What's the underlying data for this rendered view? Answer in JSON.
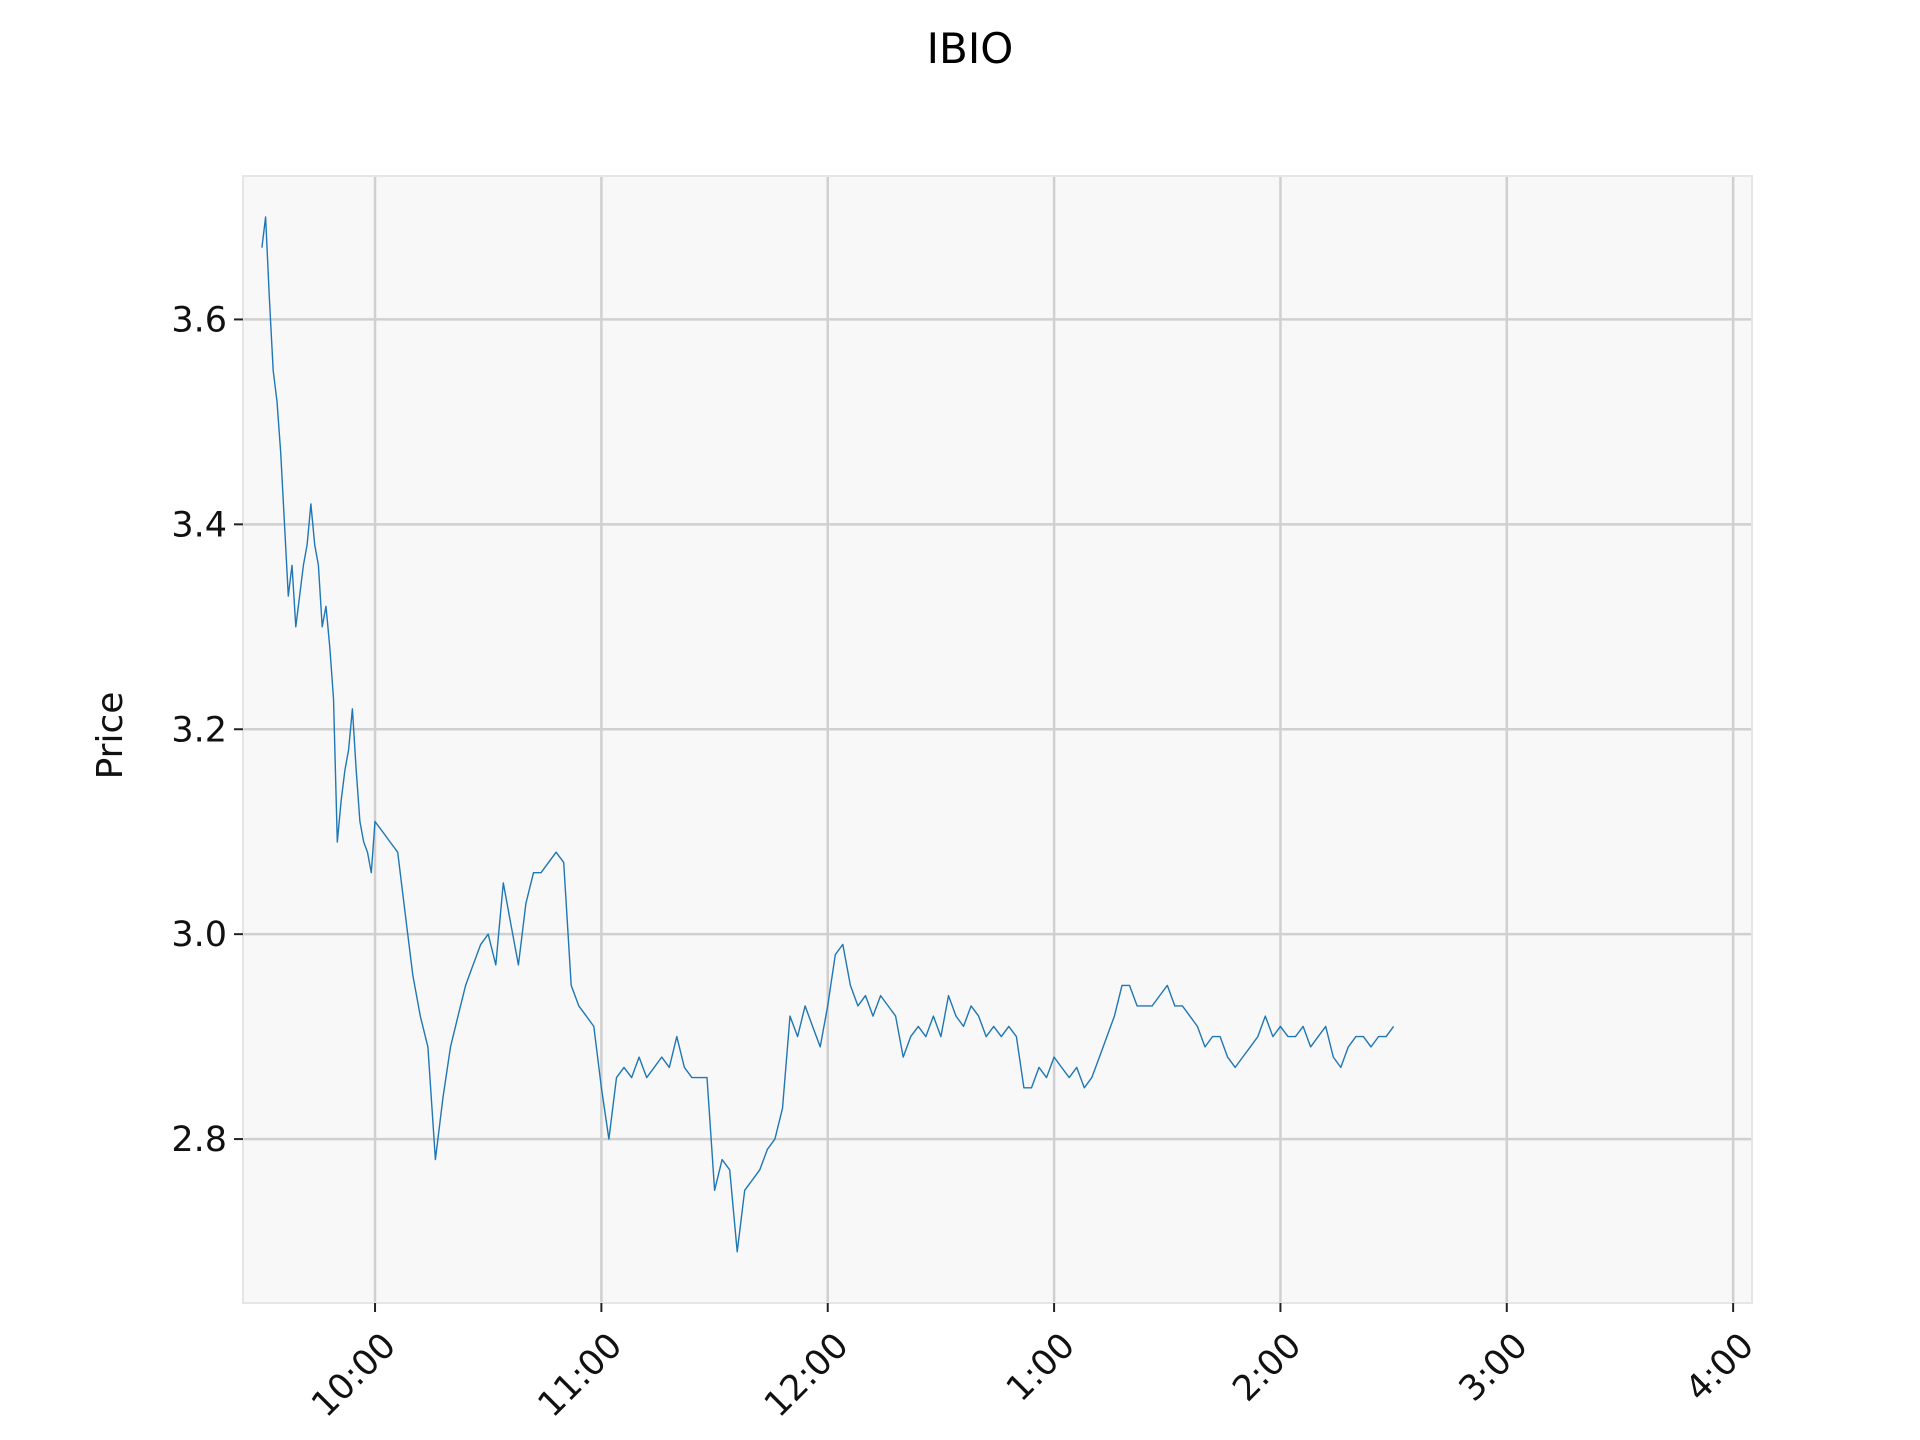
{
  "chart_data": {
    "type": "line",
    "title": "IBIO",
    "xlabel": "",
    "ylabel": "Price",
    "x_ticks": [
      {
        "label": "10:00",
        "time": "10:00"
      },
      {
        "label": "11:00",
        "time": "11:00"
      },
      {
        "label": "12:00",
        "time": "12:00"
      },
      {
        "label": "1:00",
        "time": "13:00"
      },
      {
        "label": "2:00",
        "time": "14:00"
      },
      {
        "label": "3:00",
        "time": "15:00"
      },
      {
        "label": "4:00",
        "time": "16:00"
      }
    ],
    "y_ticks": [
      2.8,
      3.0,
      3.2,
      3.4,
      3.6
    ],
    "xlim": [
      "9:25",
      "16:05"
    ],
    "ylim": [
      2.64,
      3.74
    ],
    "grid": true,
    "colors": {
      "line": "#1f77b4",
      "background": "#f8f8f8",
      "grid": "#d0d0d0",
      "spine": "#e6e6e6"
    },
    "series": [
      {
        "x": [
          "9:30",
          "9:31",
          "9:32",
          "9:33",
          "9:34",
          "9:35",
          "9:36",
          "9:37",
          "9:38",
          "9:39",
          "9:40",
          "9:41",
          "9:42",
          "9:43",
          "9:44",
          "9:45",
          "9:46",
          "9:47",
          "9:48",
          "9:49",
          "9:50",
          "9:51",
          "9:52",
          "9:53",
          "9:54",
          "9:55",
          "9:56",
          "9:57",
          "9:58",
          "9:59",
          "10:00",
          "10:02",
          "10:04",
          "10:06",
          "10:08",
          "10:10",
          "10:12",
          "10:14",
          "10:16",
          "10:18",
          "10:20",
          "10:22",
          "10:24",
          "10:26",
          "10:28",
          "10:30",
          "10:32",
          "10:34",
          "10:36",
          "10:38",
          "10:40",
          "10:42",
          "10:44",
          "10:46",
          "10:48",
          "10:50",
          "10:52",
          "10:54",
          "10:56",
          "10:58",
          "11:00",
          "11:02",
          "11:04",
          "11:06",
          "11:08",
          "11:10",
          "11:12",
          "11:14",
          "11:16",
          "11:18",
          "11:20",
          "11:22",
          "11:24",
          "11:26",
          "11:28",
          "11:30",
          "11:32",
          "11:34",
          "11:36",
          "11:38",
          "11:40",
          "11:42",
          "11:44",
          "11:46",
          "11:48",
          "11:50",
          "11:52",
          "11:54",
          "11:56",
          "11:58",
          "12:00",
          "12:02",
          "12:04",
          "12:06",
          "12:08",
          "12:10",
          "12:12",
          "12:14",
          "12:16",
          "12:18",
          "12:20",
          "12:22",
          "12:24",
          "12:26",
          "12:28",
          "12:30",
          "12:32",
          "12:34",
          "12:36",
          "12:38",
          "12:40",
          "12:42",
          "12:44",
          "12:46",
          "12:48",
          "12:50",
          "12:52",
          "12:54",
          "12:56",
          "12:58",
          "13:00",
          "13:02",
          "13:04",
          "13:06",
          "13:08",
          "13:10",
          "13:12",
          "13:14",
          "13:16",
          "13:18",
          "13:20",
          "13:22",
          "13:24",
          "13:26",
          "13:28",
          "13:30",
          "13:32",
          "13:34",
          "13:36",
          "13:38",
          "13:40",
          "13:42",
          "13:44",
          "13:46",
          "13:48",
          "13:50",
          "13:52",
          "13:54",
          "13:56",
          "13:58",
          "14:00",
          "14:02",
          "14:04",
          "14:06",
          "14:08",
          "14:10",
          "14:12",
          "14:14",
          "14:16",
          "14:18",
          "14:20",
          "14:22",
          "14:24",
          "14:26",
          "14:28",
          "14:30"
        ],
        "y": [
          3.67,
          3.7,
          3.62,
          3.55,
          3.52,
          3.47,
          3.4,
          3.33,
          3.36,
          3.3,
          3.33,
          3.36,
          3.38,
          3.42,
          3.38,
          3.36,
          3.3,
          3.32,
          3.28,
          3.23,
          3.09,
          3.13,
          3.16,
          3.18,
          3.22,
          3.16,
          3.11,
          3.09,
          3.08,
          3.06,
          3.11,
          3.1,
          3.09,
          3.08,
          3.02,
          2.96,
          2.92,
          2.89,
          2.78,
          2.84,
          2.89,
          2.92,
          2.95,
          2.97,
          2.99,
          3.0,
          2.97,
          3.05,
          3.01,
          2.97,
          3.03,
          3.06,
          3.06,
          3.07,
          3.08,
          3.07,
          2.95,
          2.93,
          2.92,
          2.91,
          2.85,
          2.8,
          2.86,
          2.87,
          2.86,
          2.88,
          2.86,
          2.87,
          2.88,
          2.87,
          2.9,
          2.87,
          2.86,
          2.86,
          2.86,
          2.75,
          2.78,
          2.77,
          2.69,
          2.75,
          2.76,
          2.77,
          2.79,
          2.8,
          2.83,
          2.92,
          2.9,
          2.93,
          2.91,
          2.89,
          2.93,
          2.98,
          2.99,
          2.95,
          2.93,
          2.94,
          2.92,
          2.94,
          2.93,
          2.92,
          2.88,
          2.9,
          2.91,
          2.9,
          2.92,
          2.9,
          2.94,
          2.92,
          2.91,
          2.93,
          2.92,
          2.9,
          2.91,
          2.9,
          2.91,
          2.9,
          2.85,
          2.85,
          2.87,
          2.86,
          2.88,
          2.87,
          2.86,
          2.87,
          2.85,
          2.86,
          2.88,
          2.9,
          2.92,
          2.95,
          2.95,
          2.93,
          2.93,
          2.93,
          2.94,
          2.95,
          2.93,
          2.93,
          2.92,
          2.91,
          2.89,
          2.9,
          2.9,
          2.88,
          2.87,
          2.88,
          2.89,
          2.9,
          2.92,
          2.9,
          2.91,
          2.9,
          2.9,
          2.91,
          2.89,
          2.9,
          2.91,
          2.88,
          2.87,
          2.89,
          2.9,
          2.9,
          2.89,
          2.9,
          2.9,
          2.91
        ]
      }
    ]
  }
}
